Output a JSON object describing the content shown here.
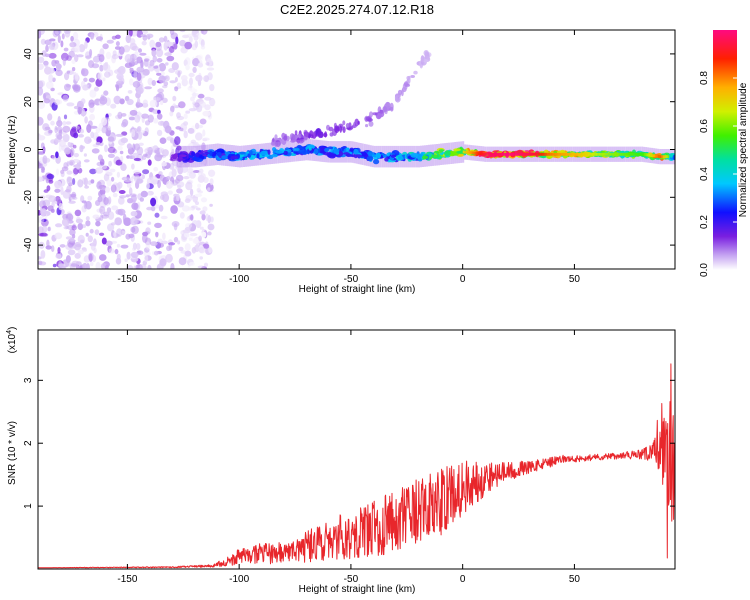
{
  "title": "C2E2.2025.274.07.12.R18",
  "chart_data": [
    {
      "type": "heatmap",
      "name": "spectrogram",
      "xlabel": "Height of straight line (km)",
      "ylabel": "Frequency (Hz)",
      "xlim": [
        -190,
        95
      ],
      "ylim": [
        -50,
        50
      ],
      "xticks": [
        -150,
        -100,
        -50,
        0,
        50
      ],
      "yticks": [
        -40,
        -20,
        0,
        20,
        40
      ],
      "colorbar": {
        "label": "Normalized spectral amplitude",
        "range": [
          0.0,
          1.0
        ],
        "ticks": [
          0.0,
          0.2,
          0.4,
          0.6,
          0.8
        ],
        "tick_labels": [
          "0.0",
          "0.2",
          "0.4",
          "0.6",
          "0.8"
        ]
      },
      "noise_region": {
        "x_range": [
          -190,
          -118
        ],
        "freq_range": [
          -50,
          50
        ],
        "amplitude_range": [
          0.02,
          0.12
        ]
      },
      "ridge": [
        {
          "x": -130,
          "freq": -3,
          "amp": 0.15
        },
        {
          "x": -120,
          "freq": -3,
          "amp": 0.25
        },
        {
          "x": -110,
          "freq": -2,
          "amp": 0.3
        },
        {
          "x": -100,
          "freq": -3,
          "amp": 0.35
        },
        {
          "x": -90,
          "freq": -2,
          "amp": 0.35
        },
        {
          "x": -80,
          "freq": -1,
          "amp": 0.35
        },
        {
          "x": -70,
          "freq": 0,
          "amp": 0.35
        },
        {
          "x": -60,
          "freq": -1,
          "amp": 0.35
        },
        {
          "x": -50,
          "freq": -1,
          "amp": 0.33
        },
        {
          "x": -40,
          "freq": -3,
          "amp": 0.33
        },
        {
          "x": -30,
          "freq": -3,
          "amp": 0.35
        },
        {
          "x": -20,
          "freq": -3,
          "amp": 0.45
        },
        {
          "x": -10,
          "freq": -2,
          "amp": 0.65
        },
        {
          "x": 0,
          "freq": -1,
          "amp": 0.7
        },
        {
          "x": 10,
          "freq": -2,
          "amp": 0.95
        },
        {
          "x": 20,
          "freq": -2,
          "amp": 1.0
        },
        {
          "x": 30,
          "freq": -2,
          "amp": 0.95
        },
        {
          "x": 40,
          "freq": -2,
          "amp": 0.8
        },
        {
          "x": 50,
          "freq": -2,
          "amp": 0.75
        },
        {
          "x": 60,
          "freq": -2,
          "amp": 0.65
        },
        {
          "x": 70,
          "freq": -2,
          "amp": 0.6
        },
        {
          "x": 80,
          "freq": -2,
          "amp": 0.55
        },
        {
          "x": 88,
          "freq": -3,
          "amp": 0.85
        },
        {
          "x": 95,
          "freq": -3,
          "amp": 0.4
        }
      ],
      "streak": [
        {
          "x": -85,
          "freq": 3,
          "amp": 0.08
        },
        {
          "x": -75,
          "freq": 5,
          "amp": 0.1
        },
        {
          "x": -65,
          "freq": 7,
          "amp": 0.12
        },
        {
          "x": -55,
          "freq": 9,
          "amp": 0.1
        },
        {
          "x": -45,
          "freq": 11,
          "amp": 0.1
        },
        {
          "x": -37,
          "freq": 15,
          "amp": 0.08
        },
        {
          "x": -30,
          "freq": 20,
          "amp": 0.07
        },
        {
          "x": -22,
          "freq": 32,
          "amp": 0.06
        },
        {
          "x": -15,
          "freq": 40,
          "amp": 0.04
        }
      ]
    },
    {
      "type": "line",
      "name": "snr",
      "xlabel": "Height of straight line (km)",
      "ylabel": "SNR (10 * v/v)",
      "y_multiplier": "(x10^4)",
      "y_multiplier_base": "(x10",
      "y_multiplier_exp": "4",
      "y_multiplier_close": ")",
      "xlim": [
        -190,
        95
      ],
      "ylim": [
        0,
        3.8
      ],
      "xticks": [
        -150,
        -100,
        -50,
        0,
        50
      ],
      "yticks": [
        1,
        2,
        3
      ],
      "series": [
        {
          "name": "SNR",
          "color": "#e8262b",
          "x": [
            -190,
            -130,
            -112,
            -105,
            -100,
            -90,
            -80,
            -70,
            -60,
            -50,
            -40,
            -30,
            -20,
            -10,
            0,
            10,
            20,
            30,
            40,
            45,
            50,
            60,
            70,
            80,
            85,
            90,
            92,
            95
          ],
          "y": [
            0.02,
            0.03,
            0.05,
            0.12,
            0.2,
            0.25,
            0.25,
            0.35,
            0.45,
            0.55,
            0.65,
            0.75,
            0.9,
            1.05,
            1.3,
            1.45,
            1.55,
            1.62,
            1.7,
            1.75,
            1.75,
            1.78,
            1.8,
            1.82,
            1.85,
            1.95,
            1.5,
            1.8
          ],
          "noise": [
            0.0,
            0.01,
            0.02,
            0.08,
            0.12,
            0.16,
            0.18,
            0.25,
            0.32,
            0.4,
            0.45,
            0.5,
            0.55,
            0.55,
            0.45,
            0.28,
            0.15,
            0.1,
            0.08,
            0.06,
            0.05,
            0.05,
            0.05,
            0.08,
            0.15,
            0.5,
            1.3,
            0.6
          ]
        }
      ]
    }
  ]
}
